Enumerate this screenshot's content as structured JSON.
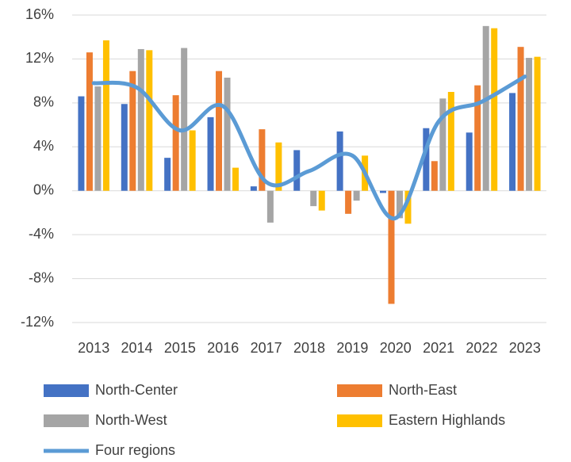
{
  "chart_data": {
    "type": "bar",
    "categories": [
      "2013",
      "2014",
      "2015",
      "2016",
      "2017",
      "2018",
      "2019",
      "2020",
      "2021",
      "2022",
      "2023"
    ],
    "series": [
      {
        "name": "North-Center",
        "color": "#4472c4",
        "values": [
          8.6,
          7.9,
          3.0,
          6.7,
          0.4,
          3.7,
          5.4,
          -0.2,
          5.7,
          5.3,
          8.9
        ]
      },
      {
        "name": "North-East",
        "color": "#ed7d31",
        "values": [
          12.6,
          10.9,
          8.7,
          10.9,
          5.6,
          0,
          -2.1,
          -10.3,
          2.7,
          9.6,
          13.1
        ]
      },
      {
        "name": "North-West",
        "color": "#a5a5a5",
        "values": [
          9.5,
          12.9,
          13.0,
          10.3,
          -2.9,
          -1.4,
          -0.9,
          -2.5,
          8.4,
          15.0,
          12.1
        ]
      },
      {
        "name": "Eastern Highlands",
        "color": "#ffc000",
        "values": [
          13.7,
          12.8,
          5.5,
          2.1,
          4.4,
          -1.8,
          3.2,
          -3.0,
          9.0,
          14.8,
          12.2
        ]
      },
      {
        "name": "Four regions",
        "color": "#5b9bd5",
        "type": "line",
        "values": [
          9.8,
          9.4,
          5.5,
          7.7,
          0.8,
          1.8,
          3.2,
          -2.5,
          6.3,
          8.1,
          10.4
        ]
      }
    ],
    "ylim": [
      -12,
      16
    ],
    "yticks": [
      {
        "value": -12,
        "label": "-12%"
      },
      {
        "value": -8,
        "label": "-8%"
      },
      {
        "value": -4,
        "label": "-4%"
      },
      {
        "value": 0,
        "label": "0%"
      },
      {
        "value": 4,
        "label": "4%"
      },
      {
        "value": 8,
        "label": "8%"
      },
      {
        "value": 12,
        "label": "12%"
      },
      {
        "value": 16,
        "label": "16%"
      }
    ],
    "grid": true
  }
}
